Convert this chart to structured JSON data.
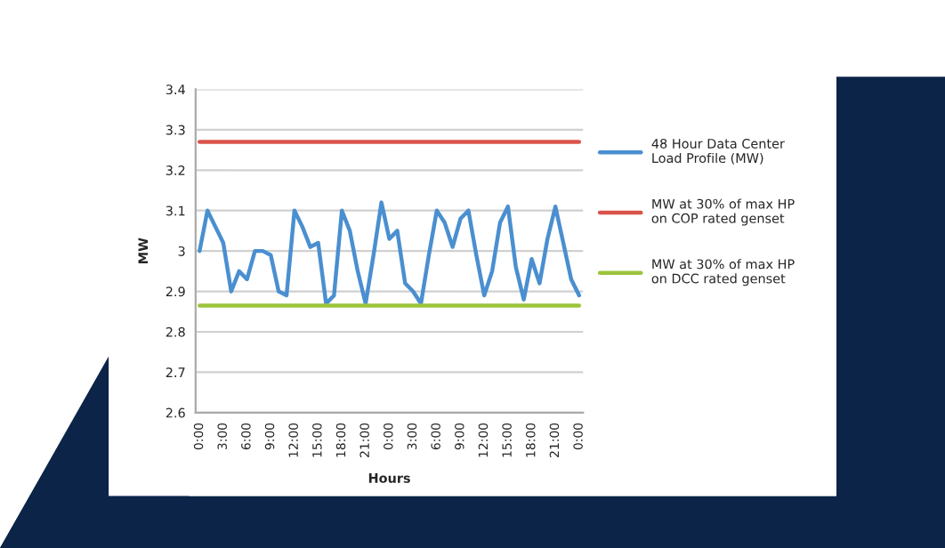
{
  "chart_data": {
    "type": "line",
    "xlabel": "Hours",
    "ylabel": "MW",
    "categories": [
      "0:00",
      null,
      null,
      "3:00",
      null,
      null,
      "6:00",
      null,
      null,
      "9:00",
      null,
      null,
      "12:00",
      null,
      null,
      "15:00",
      null,
      null,
      "18:00",
      null,
      null,
      "21:00",
      null,
      null,
      "0:00",
      null,
      null,
      "3:00",
      null,
      null,
      "6:00",
      null,
      null,
      "9:00",
      null,
      null,
      "12:00",
      null,
      null,
      "15:00",
      null,
      null,
      "18:00",
      null,
      null,
      "21:00",
      null,
      null,
      "0:00"
    ],
    "series": [
      {
        "name": "48 Hour Data Center Load Profile (MW)",
        "color": "#4a8fd0",
        "values": [
          3.0,
          3.1,
          3.06,
          3.02,
          2.9,
          2.95,
          2.93,
          3.0,
          3.0,
          2.99,
          2.9,
          2.89,
          3.1,
          3.06,
          3.01,
          3.02,
          2.87,
          2.89,
          3.1,
          3.05,
          2.95,
          2.87,
          2.99,
          3.12,
          3.03,
          3.05,
          2.92,
          2.9,
          2.87,
          2.99,
          3.1,
          3.07,
          3.01,
          3.08,
          3.1,
          2.99,
          2.89,
          2.95,
          3.07,
          3.11,
          2.96,
          2.88,
          2.98,
          2.92,
          3.03,
          3.11,
          3.02,
          2.93,
          2.89
        ]
      },
      {
        "name": "MW at 30% of max HP on COP rated genset",
        "color": "#d9534a",
        "values": [
          3.27,
          3.27,
          3.27,
          3.27,
          3.27,
          3.27,
          3.27,
          3.27,
          3.27,
          3.27,
          3.27,
          3.27,
          3.27,
          3.27,
          3.27,
          3.27,
          3.27,
          3.27,
          3.27,
          3.27,
          3.27,
          3.27,
          3.27,
          3.27,
          3.27,
          3.27,
          3.27,
          3.27,
          3.27,
          3.27,
          3.27,
          3.27,
          3.27,
          3.27,
          3.27,
          3.27,
          3.27,
          3.27,
          3.27,
          3.27,
          3.27,
          3.27,
          3.27,
          3.27,
          3.27,
          3.27,
          3.27,
          3.27,
          3.27
        ]
      },
      {
        "name": "MW at 30% of max HP on DCC rated genset",
        "color": "#9bc43c",
        "values": [
          2.865,
          2.865,
          2.865,
          2.865,
          2.865,
          2.865,
          2.865,
          2.865,
          2.865,
          2.865,
          2.865,
          2.865,
          2.865,
          2.865,
          2.865,
          2.865,
          2.865,
          2.865,
          2.865,
          2.865,
          2.865,
          2.865,
          2.865,
          2.865,
          2.865,
          2.865,
          2.865,
          2.865,
          2.865,
          2.865,
          2.865,
          2.865,
          2.865,
          2.865,
          2.865,
          2.865,
          2.865,
          2.865,
          2.865,
          2.865,
          2.865,
          2.865,
          2.865,
          2.865,
          2.865,
          2.865,
          2.865,
          2.865,
          2.865
        ]
      }
    ],
    "ylim": [
      2.6,
      3.4
    ],
    "yticks": [
      2.6,
      2.7,
      2.8,
      2.9,
      3,
      3.1,
      3.2,
      3.3,
      3.4
    ],
    "grid": "y",
    "legend": "right",
    "marker": "none",
    "line_style": "solid"
  }
}
